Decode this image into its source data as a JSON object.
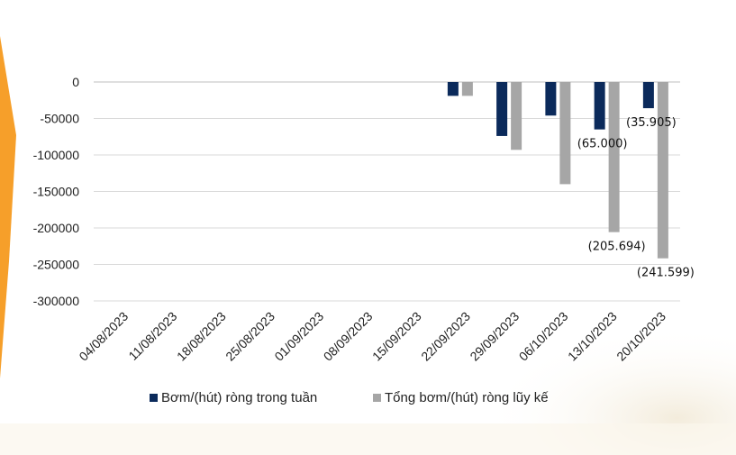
{
  "chart_data": {
    "type": "bar",
    "categories": [
      "04/08/2023",
      "11/08/2023",
      "18/08/2023",
      "25/08/2023",
      "01/09/2023",
      "08/09/2023",
      "15/09/2023",
      "22/09/2023",
      "29/09/2023",
      "06/10/2023",
      "13/10/2023",
      "20/10/2023"
    ],
    "series": [
      {
        "name": "Bơm/(hút) ròng trong tuần",
        "color": "#0b2a5b",
        "values": [
          null,
          null,
          null,
          null,
          null,
          null,
          null,
          -19000,
          -74000,
          -46000,
          -65000,
          -35905
        ]
      },
      {
        "name": "Tổng bơm/(hút) ròng lũy kế",
        "color": "#a6a6a6",
        "values": [
          null,
          null,
          null,
          null,
          null,
          null,
          null,
          -19000,
          -93000,
          -140000,
          -205694,
          -241599
        ]
      }
    ],
    "data_labels": [
      {
        "category": "13/10/2023",
        "series": 0,
        "text": "(65.000)"
      },
      {
        "category": "20/10/2023",
        "series": 0,
        "text": "(35.905)"
      },
      {
        "category": "13/10/2023",
        "series": 1,
        "text": "(205.694)"
      },
      {
        "category": "20/10/2023",
        "series": 1,
        "text": "(241.599)"
      }
    ],
    "yticks": [
      "0",
      "-50000",
      "-100000",
      "-150000",
      "-200000",
      "-250000",
      "-300000"
    ],
    "ylim": [
      -300000,
      0
    ],
    "grid": true,
    "legend_position": "bottom",
    "title": "",
    "xlabel": "",
    "ylabel": ""
  },
  "decor_color": "#f59a1f"
}
